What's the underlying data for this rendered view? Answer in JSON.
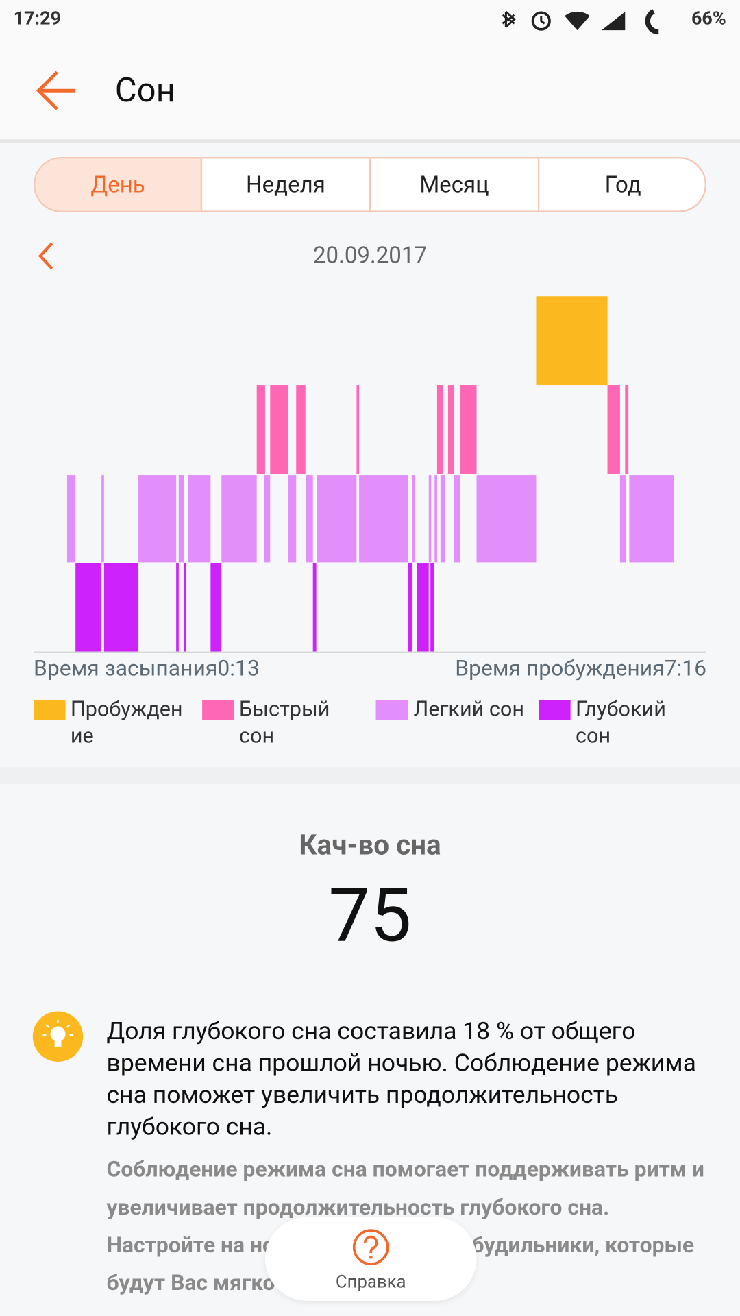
{
  "status_bar": {
    "time": "17:29",
    "battery": "66%"
  },
  "header": {
    "title": "Сон"
  },
  "tabs": [
    "День",
    "Неделя",
    "Месяц",
    "Год"
  ],
  "date": "20.09.2017",
  "chart": {
    "sleep_start": "Время засыпания0:13",
    "wake_time": "Время пробуждения7:16",
    "legend": [
      "Пробуждение",
      "Быстрый сон",
      "Легкий сон",
      "Глубокий сон"
    ]
  },
  "quality": {
    "label": "Кач-во сна",
    "score": "75"
  },
  "tip": {
    "text": "Доля глубокого сна составила 18 % от общего времени сна прошлой ночью. Соблюдение режима сна поможет увеличить продолжительность глубокого сна.",
    "detail": "Соблюдение режима сна помогает поддерживать ритм и увеличивает продолжительность глубокого сна. Настройте на носимом устройстве будильники, которые будут Вас мягко будить по утрам."
  },
  "help_button": "Справка"
}
